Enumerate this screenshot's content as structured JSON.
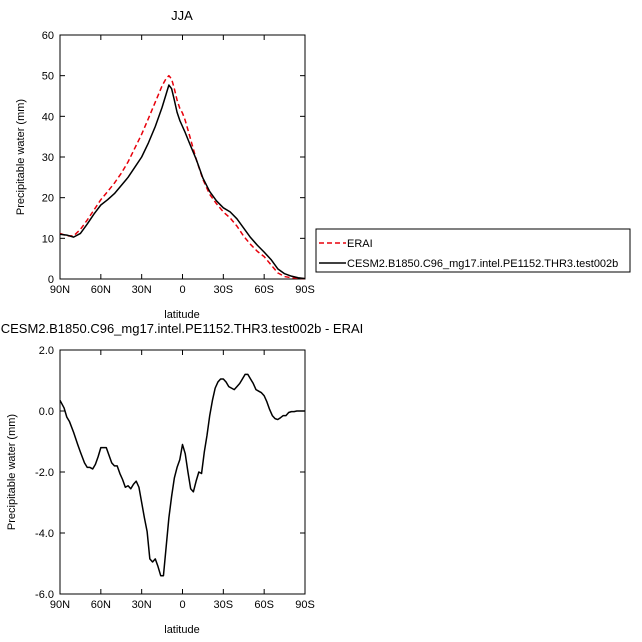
{
  "chart_data": [
    {
      "type": "line",
      "title": "JJA",
      "xlabel": "latitude",
      "ylabel": "Precipitable water (mm)",
      "x_tick_labels": [
        "90N",
        "60N",
        "30N",
        "0",
        "30S",
        "60S",
        "90S"
      ],
      "x_tick_values": [
        90,
        60,
        30,
        0,
        -30,
        -60,
        -90
      ],
      "xlim": [
        90,
        -90
      ],
      "ylim": [
        0,
        60
      ],
      "y_tick_labels": [
        "0",
        "10",
        "20",
        "30",
        "40",
        "50",
        "60"
      ],
      "y_tick_values": [
        0,
        10,
        20,
        30,
        40,
        50,
        60
      ],
      "legend_placement": "right",
      "series": [
        {
          "name": "ERAI",
          "color": "#e8000b",
          "style": "dashed",
          "x": [
            90,
            85,
            80,
            75,
            70,
            65,
            60,
            55,
            50,
            45,
            40,
            35,
            30,
            25,
            20,
            15,
            12,
            10,
            8,
            6,
            4,
            2,
            0,
            -2,
            -5,
            -10,
            -15,
            -20,
            -25,
            -30,
            -35,
            -40,
            -45,
            -50,
            -55,
            -60,
            -65,
            -70,
            -75,
            -80,
            -85,
            -90
          ],
          "y": [
            11.2,
            10.6,
            10.6,
            12.2,
            14.5,
            17.0,
            19.5,
            21.5,
            23.6,
            26.0,
            28.8,
            32.2,
            35.6,
            39.5,
            43.5,
            47.5,
            49.3,
            50.0,
            49.2,
            46.8,
            44.0,
            42.0,
            40.8,
            39.0,
            35.5,
            29.5,
            24.5,
            20.8,
            18.5,
            16.5,
            15.0,
            13.0,
            10.5,
            8.5,
            6.8,
            5.5,
            3.5,
            1.5,
            0.6,
            0.3,
            0.2,
            0.1
          ]
        },
        {
          "name": "CESM2.B1850.C96_mg17.intel.PE1152.THR3.test002b",
          "color": "#000000",
          "style": "solid",
          "x": [
            90,
            85,
            80,
            75,
            70,
            65,
            60,
            55,
            50,
            45,
            40,
            35,
            30,
            25,
            20,
            15,
            12,
            10,
            8,
            6,
            4,
            2,
            0,
            -2,
            -5,
            -10,
            -15,
            -20,
            -25,
            -30,
            -35,
            -40,
            -45,
            -50,
            -55,
            -60,
            -65,
            -70,
            -75,
            -80,
            -85,
            -90
          ],
          "y": [
            11.0,
            10.8,
            10.3,
            11.2,
            13.5,
            16.0,
            18.2,
            19.5,
            21.0,
            23.0,
            25.0,
            27.5,
            30.0,
            33.5,
            37.5,
            42.2,
            45.5,
            47.7,
            46.8,
            44.0,
            41.0,
            39.0,
            37.5,
            36.0,
            33.5,
            29.5,
            24.8,
            21.5,
            19.2,
            17.5,
            16.5,
            14.8,
            12.5,
            10.2,
            8.3,
            6.6,
            4.8,
            2.5,
            1.3,
            0.7,
            0.3,
            0.1
          ]
        }
      ]
    },
    {
      "type": "line",
      "title": "CESM2.B1850.C96_mg17.intel.PE1152.THR3.test002b - ERAI",
      "xlabel": "latitude",
      "ylabel": "Precipitable water (mm)",
      "x_tick_labels": [
        "90N",
        "60N",
        "30N",
        "0",
        "30S",
        "60S",
        "90S"
      ],
      "x_tick_values": [
        90,
        60,
        30,
        0,
        -30,
        -60,
        -90
      ],
      "xlim": [
        90,
        -90
      ],
      "ylim": [
        -6.0,
        2.0
      ],
      "y_tick_labels": [
        "2.0",
        "0.0",
        "-2.0",
        "-4.0",
        "-6.0"
      ],
      "y_tick_values": [
        2.0,
        0.0,
        -2.0,
        -4.0,
        -6.0
      ],
      "series": [
        {
          "color": "#000000",
          "style": "solid",
          "x": [
            90,
            87,
            85,
            83,
            80,
            77,
            75,
            72,
            70,
            68,
            66,
            64,
            62,
            60,
            58,
            56,
            54,
            52,
            50,
            48,
            46,
            44,
            42,
            40,
            38,
            36,
            34,
            32,
            30,
            28,
            26,
            24,
            22,
            20,
            18,
            16,
            14,
            12,
            10,
            8,
            6,
            4,
            2,
            0,
            -2,
            -4,
            -6,
            -8,
            -10,
            -12,
            -14,
            -16,
            -18,
            -20,
            -22,
            -24,
            -26,
            -28,
            -30,
            -32,
            -34,
            -36,
            -38,
            -40,
            -42,
            -44,
            -46,
            -48,
            -50,
            -52,
            -54,
            -56,
            -58,
            -60,
            -62,
            -64,
            -66,
            -68,
            -70,
            -72,
            -74,
            -76,
            -78,
            -80,
            -82,
            -84,
            -86,
            -88,
            -90
          ],
          "y": [
            0.35,
            0.1,
            -0.2,
            -0.35,
            -0.7,
            -1.1,
            -1.35,
            -1.7,
            -1.85,
            -1.85,
            -1.9,
            -1.75,
            -1.5,
            -1.2,
            -1.2,
            -1.2,
            -1.45,
            -1.7,
            -1.8,
            -1.8,
            -2.05,
            -2.25,
            -2.5,
            -2.45,
            -2.55,
            -2.4,
            -2.3,
            -2.5,
            -3.0,
            -3.5,
            -3.95,
            -4.85,
            -4.95,
            -4.85,
            -5.1,
            -5.4,
            -5.4,
            -4.45,
            -3.5,
            -2.8,
            -2.2,
            -1.85,
            -1.6,
            -1.1,
            -1.4,
            -2.0,
            -2.55,
            -2.65,
            -2.3,
            -2.0,
            -2.05,
            -1.35,
            -0.8,
            -0.15,
            0.35,
            0.75,
            0.95,
            1.05,
            1.05,
            0.95,
            0.8,
            0.75,
            0.7,
            0.8,
            0.9,
            1.05,
            1.2,
            1.2,
            1.05,
            0.9,
            0.7,
            0.65,
            0.6,
            0.5,
            0.3,
            0.05,
            -0.15,
            -0.25,
            -0.28,
            -0.22,
            -0.15,
            -0.15,
            -0.05,
            -0.02,
            -0.02,
            0.0,
            0.0,
            0.0,
            0.0
          ]
        }
      ]
    }
  ]
}
